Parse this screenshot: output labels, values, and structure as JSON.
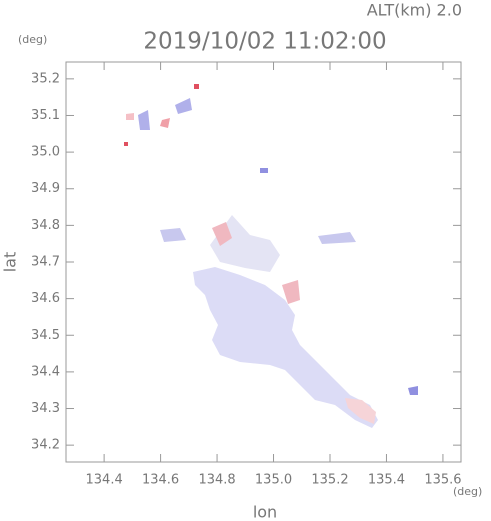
{
  "chart_data": {
    "type": "map",
    "title": "2019/10/02 11:02:00",
    "subtitle": "ALT(km) 2.0",
    "x_label": "lon",
    "y_label": "lat",
    "x_unit": "(deg)",
    "y_unit": "(deg)",
    "xlim": [
      134.265,
      135.664
    ],
    "ylim": [
      34.154,
      35.246
    ],
    "xticks": [
      134.4,
      134.6,
      134.8,
      {
        "value": 135.0,
        "label": "135.0"
      },
      135.2,
      135.4,
      135.6
    ],
    "yticks": [
      34.2,
      34.3,
      34.4,
      34.5,
      34.6,
      34.7,
      34.8,
      34.9,
      {
        "value": 35.0,
        "label": "35.0"
      },
      35.1,
      35.2
    ]
  }
}
